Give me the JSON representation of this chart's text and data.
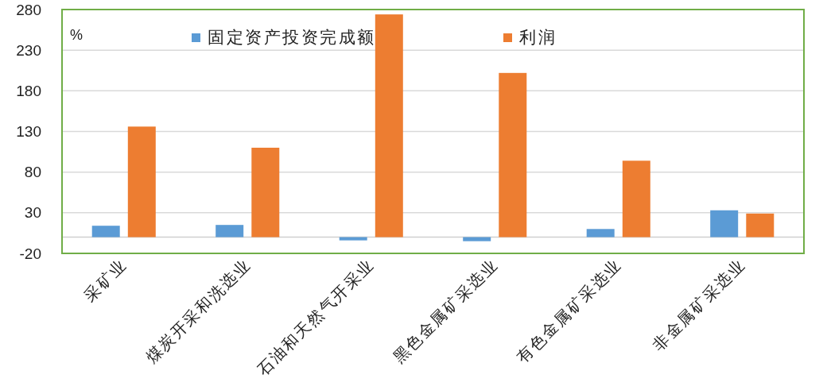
{
  "chart_data": {
    "type": "bar",
    "ylabel": "%",
    "categories": [
      "采矿业",
      "煤炭开采和洗选业",
      "石油和天然气开采业",
      "黑色金属矿采选业",
      "有色金属矿采选业",
      "非金属矿采选业"
    ],
    "series": [
      {
        "name": "固定资产投资完成额",
        "color": "#5b9bd5",
        "values": [
          14,
          15,
          -4,
          -5,
          10,
          33
        ]
      },
      {
        "name": "利润",
        "color": "#ed7d31",
        "values": [
          136,
          110,
          274,
          202,
          94,
          29
        ]
      }
    ],
    "ylim": [
      -20,
      280
    ],
    "yticks": [
      -20,
      30,
      80,
      130,
      180,
      230,
      280
    ],
    "grid": "y",
    "legend": "top"
  }
}
